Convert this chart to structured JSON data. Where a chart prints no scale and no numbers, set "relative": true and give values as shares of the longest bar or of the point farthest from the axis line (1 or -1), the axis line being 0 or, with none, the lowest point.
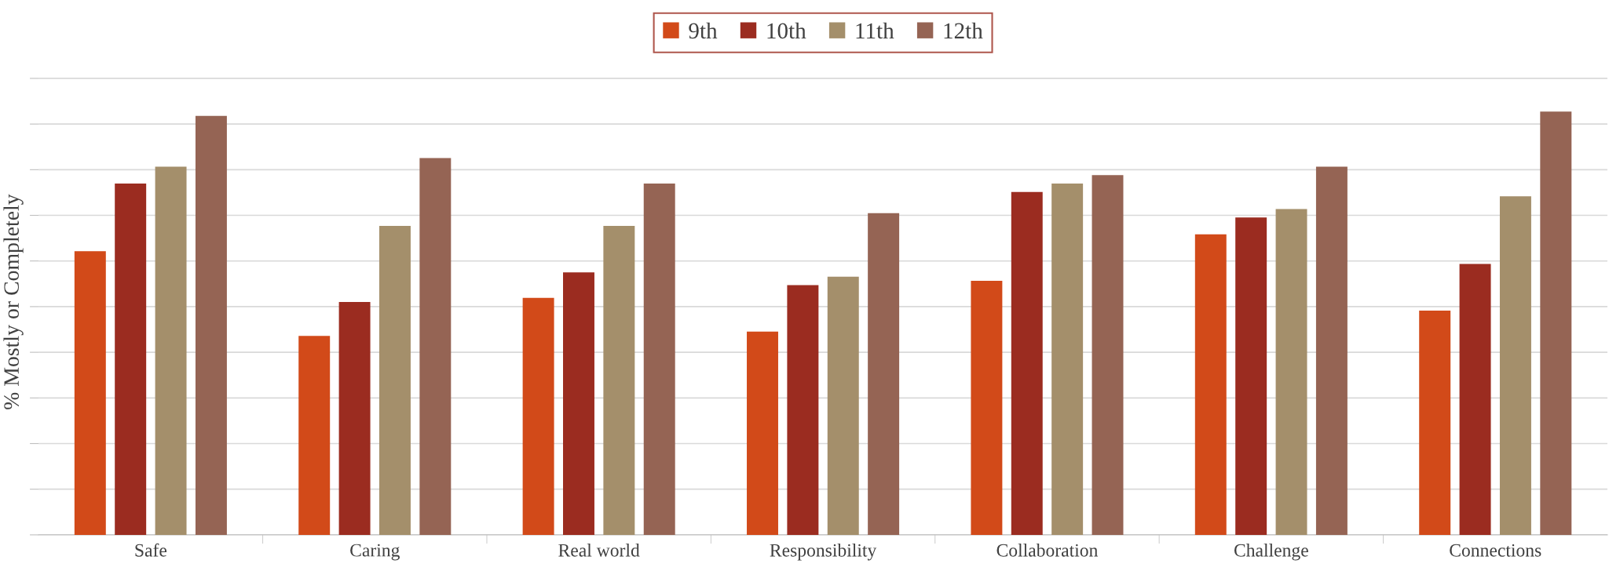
{
  "chart_data": {
    "type": "bar",
    "relative": true,
    "ylabel": "% Mostly or Completely",
    "categories": [
      "Safe",
      "Caring",
      "Real world",
      "Responsibility",
      "Collaboration",
      "Challenge",
      "Connections"
    ],
    "series": [
      {
        "name": "9th",
        "color": "#d24a19",
        "values": [
          0.67,
          0.47,
          0.56,
          0.48,
          0.6,
          0.71,
          0.53
        ]
      },
      {
        "name": "10th",
        "color": "#9b2c20",
        "values": [
          0.83,
          0.55,
          0.62,
          0.59,
          0.81,
          0.75,
          0.64
        ]
      },
      {
        "name": "11th",
        "color": "#a48f6b",
        "values": [
          0.87,
          0.73,
          0.73,
          0.61,
          0.83,
          0.77,
          0.8
        ]
      },
      {
        "name": "12th",
        "color": "#956454",
        "values": [
          0.99,
          0.89,
          0.83,
          0.76,
          0.85,
          0.87,
          1
        ]
      }
    ],
    "grid": "y",
    "legend": "top"
  }
}
